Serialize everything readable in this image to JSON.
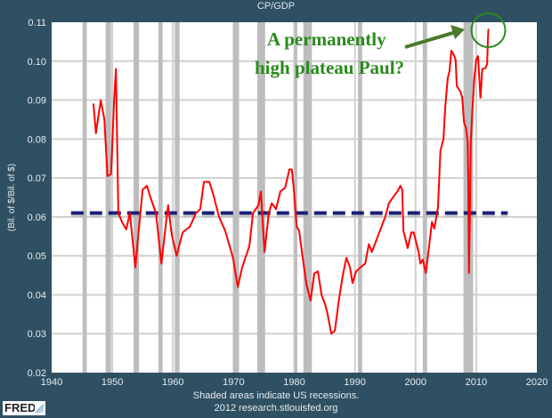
{
  "chart_data": {
    "type": "line",
    "title": "CP/GDP",
    "xlabel": "",
    "ylabel": "(Bil. of $/Bil. of $)",
    "xlim": [
      1940,
      2020
    ],
    "ylim": [
      0.02,
      0.11
    ],
    "x_ticks": [
      "1940",
      "1950",
      "1960",
      "1970",
      "1980",
      "1990",
      "2000",
      "2010",
      "2020"
    ],
    "y_ticks": [
      "0.02",
      "0.03",
      "0.04",
      "0.05",
      "0.06",
      "0.07",
      "0.08",
      "0.09",
      "0.10",
      "0.11"
    ],
    "grid": true,
    "series_color": "#ff0000",
    "series": [
      {
        "x": [
          1946.9,
          1947.3,
          1948.1,
          1948.7,
          1949.2,
          1949.8,
          1950.3,
          1950.6,
          1951.0,
          1951.6,
          1952.3,
          1952.9,
          1953.8,
          1954.2,
          1955.0,
          1955.7,
          1956.4,
          1957.2,
          1958.1,
          1958.6,
          1959.2,
          1959.8,
          1960.6,
          1961.6,
          1962.8,
          1963.8,
          1964.5,
          1965.1,
          1966.0,
          1966.7,
          1967.6,
          1968.6,
          1969.9,
          1970.7,
          1971.4,
          1972.6,
          1973.2,
          1974.1,
          1974.5,
          1975.1,
          1975.8,
          1976.3,
          1977.0,
          1977.7,
          1978.5,
          1979.2,
          1979.6,
          1979.9,
          1980.4,
          1980.8,
          1981.4,
          1982.0,
          1982.7,
          1983.3,
          1983.9,
          1984.5,
          1985.1,
          1985.5,
          1986.1,
          1986.7,
          1987.3,
          1988.0,
          1988.6,
          1989.2,
          1989.6,
          1990.2,
          1990.9,
          1991.7,
          1992.3,
          1992.8,
          1993.9,
          1995.0,
          1995.6,
          1996.5,
          1997.0,
          1997.5,
          1997.8,
          1998.0,
          1998.7,
          1999.3,
          1999.7,
          2000.5,
          2000.8,
          2001.2,
          2001.7,
          2002.2,
          2002.7,
          2003.1,
          2003.7,
          2004.1,
          2004.6,
          2004.9,
          2005.3,
          2005.6,
          2005.9,
          2006.3,
          2006.6,
          2006.8,
          2007.4,
          2007.7,
          2008.0,
          2008.3,
          2008.6,
          2008.7,
          2008.8,
          2009.0,
          2009.1,
          2009.4,
          2009.7,
          2010.0,
          2010.3,
          2010.5,
          2010.7,
          2011.0,
          2011.5,
          2011.8,
          2011.9,
          2012.0
        ],
        "y": [
          0.089,
          0.0815,
          0.09,
          0.085,
          0.0705,
          0.071,
          0.09,
          0.098,
          0.061,
          0.0587,
          0.0568,
          0.061,
          0.047,
          0.054,
          0.067,
          0.068,
          0.0645,
          0.061,
          0.048,
          0.055,
          0.063,
          0.0555,
          0.05,
          0.056,
          0.0575,
          0.061,
          0.062,
          0.069,
          0.069,
          0.0655,
          0.06,
          0.0565,
          0.0495,
          0.042,
          0.047,
          0.0525,
          0.061,
          0.063,
          0.0665,
          0.051,
          0.061,
          0.0635,
          0.062,
          0.0665,
          0.0675,
          0.0722,
          0.0722,
          0.0677,
          0.0575,
          0.0565,
          0.0495,
          0.0427,
          0.0385,
          0.0455,
          0.046,
          0.04,
          0.0375,
          0.035,
          0.03,
          0.0308,
          0.038,
          0.045,
          0.0495,
          0.047,
          0.043,
          0.046,
          0.047,
          0.048,
          0.053,
          0.051,
          0.0555,
          0.06,
          0.0635,
          0.0655,
          0.0665,
          0.068,
          0.067,
          0.0565,
          0.052,
          0.056,
          0.056,
          0.051,
          0.048,
          0.049,
          0.0456,
          0.052,
          0.0587,
          0.057,
          0.0625,
          0.077,
          0.08,
          0.0883,
          0.0956,
          0.0975,
          0.1027,
          0.1016,
          0.1005,
          0.0936,
          0.0922,
          0.0906,
          0.0842,
          0.083,
          0.0792,
          0.0684,
          0.0456,
          0.064,
          0.079,
          0.0883,
          0.0958,
          0.1004,
          0.1013,
          0.0958,
          0.0906,
          0.098,
          0.0982,
          0.0993,
          0.1043,
          0.1082
        ]
      }
    ],
    "recessions": [
      [
        1945.1,
        1945.8
      ],
      [
        1948.9,
        1949.8
      ],
      [
        1953.5,
        1954.4
      ],
      [
        1957.6,
        1958.3
      ],
      [
        1960.3,
        1961.1
      ],
      [
        1969.9,
        1970.9
      ],
      [
        1973.9,
        1975.2
      ],
      [
        1980.0,
        1980.5
      ],
      [
        1981.5,
        1982.9
      ],
      [
        1990.5,
        1991.2
      ],
      [
        2001.2,
        2001.9
      ],
      [
        2007.9,
        2009.5
      ]
    ],
    "reference_line": {
      "y": 0.061,
      "x": [
        1943.2,
        2015.2
      ],
      "color": "#1a1f7a",
      "style": "dashed"
    },
    "annotation": {
      "line1": "A permanently",
      "line2": "high plateau Paul?",
      "color": "#2b8a1e",
      "arrow_color": "#4a7a2a",
      "circle_at": [
        2012.0,
        0.1075
      ]
    }
  },
  "footer": {
    "note": "Shaded areas indicate US recessions.",
    "source": "2012 research.stlouisfed.org",
    "logo": "FRED"
  }
}
